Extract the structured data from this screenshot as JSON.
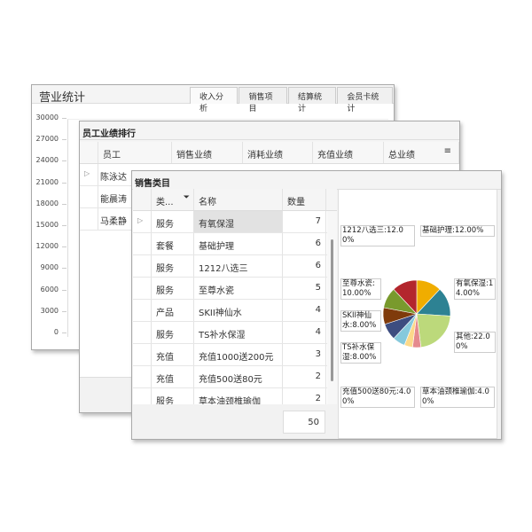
{
  "revenue_panel": {
    "title": "营业统计",
    "tabs": [
      "收入分析",
      "销售项目",
      "结算统计",
      "会员卡统计"
    ],
    "active_tab": 0,
    "y_ticks": [
      "30000",
      "27000",
      "24000",
      "21000",
      "18000",
      "15000",
      "12000",
      "9000",
      "6000",
      "3000",
      "0"
    ]
  },
  "staff_panel": {
    "title": "员工业绩排行",
    "columns": [
      "员工",
      "销售业绩",
      "消耗业绩",
      "充值业绩",
      "总业绩"
    ],
    "rows": [
      "陈泳达",
      "能晨涛",
      "马柔静"
    ],
    "filter_icon": "filter-lines-icon"
  },
  "sales_panel": {
    "title": "销售类目",
    "columns": [
      "类...",
      "名称",
      "数量"
    ],
    "filter_icon": "funnel-icon",
    "rows": [
      [
        "服务",
        "有氧保湿",
        "7"
      ],
      [
        "套餐",
        "基础护理",
        "6"
      ],
      [
        "服务",
        "1212八选三",
        "6"
      ],
      [
        "服务",
        "至尊水瓷",
        "5"
      ],
      [
        "产品",
        "SKII神仙水",
        "4"
      ],
      [
        "服务",
        "TS补水保湿",
        "4"
      ],
      [
        "充值",
        "充值1000送200元",
        "3"
      ],
      [
        "充值",
        "充值500送80元",
        "2"
      ],
      [
        "服务",
        "草本油颈椎瑜伽",
        "2"
      ]
    ],
    "total": "50"
  },
  "chart_data": {
    "type": "pie",
    "slices": [
      {
        "label": "基础护理",
        "value": 12,
        "color": "#f0ad00",
        "text": "基础护理:12.00%"
      },
      {
        "label": "有氧保湿",
        "value": 14,
        "color": "#2d8293",
        "text": "有氧保湿:14.00%"
      },
      {
        "label": "其他",
        "value": 22,
        "color": "#bcd97b",
        "text": "其他:22.00%"
      },
      {
        "label": "草本油颈椎瑜伽",
        "value": 4,
        "color": "#e58a8e",
        "text": "草本油颈椎瑜伽:4.00%"
      },
      {
        "label": "充值500送80元",
        "value": 4,
        "color": "#fcd98a",
        "text": "充值500送80元:4.00%"
      },
      {
        "label": "充值1000送200元",
        "value": 6,
        "color": "#86c9dc",
        "text": ""
      },
      {
        "label": "TS补水保湿",
        "value": 8,
        "color": "#3d4d80",
        "text": "TS补水保湿:8.00%"
      },
      {
        "label": "SKII神仙水",
        "value": 8,
        "color": "#7f3b0b",
        "text": "SKII神仙水:8.00%"
      },
      {
        "label": "至尊水瓷",
        "value": 10,
        "color": "#799a2d",
        "text": "至尊水瓷:10.00%"
      },
      {
        "label": "1212八选三",
        "value": 12,
        "color": "#b3262d",
        "text": "1212八选三:12.00%"
      }
    ],
    "start_angle": "12 o'clock",
    "direction": "clockwise",
    "legend": "none"
  }
}
